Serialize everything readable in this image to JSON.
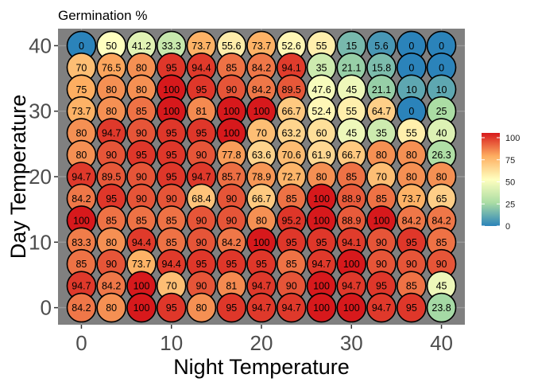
{
  "chart_data": {
    "type": "heatmap",
    "title": "Germination %",
    "xlabel": "Night Temperature",
    "ylabel": "Day Temperature",
    "x": [
      0,
      3.33,
      6.67,
      10,
      13.33,
      16.67,
      20,
      23.33,
      26.67,
      30,
      33.33,
      36.67,
      40
    ],
    "y": [
      0,
      3.33,
      6.67,
      10,
      13.33,
      16.67,
      20,
      23.33,
      26.67,
      30,
      33.33,
      36.67,
      40
    ],
    "xticks": [
      0,
      10,
      20,
      30,
      40
    ],
    "yticks": [
      0,
      10,
      20,
      30,
      40
    ],
    "xlim": [
      -2.6,
      42.6
    ],
    "ylim": [
      -2.6,
      42.6
    ],
    "rows_top_to_bottom": [
      [
        "0",
        "50",
        "41.2",
        "33.3",
        "73.7",
        "55.6",
        "73.7",
        "52.6",
        "55",
        "15",
        "5.6",
        "0",
        "0"
      ],
      [
        "70",
        "76.5",
        "80",
        "95",
        "94.4",
        "85",
        "84.2",
        "94.1",
        "35",
        "21.1",
        "15.8",
        "0",
        "0"
      ],
      [
        "75",
        "80",
        "80",
        "100",
        "95",
        "90",
        "84.2",
        "89.5",
        "47.6",
        "45",
        "21.1",
        "10",
        "10"
      ],
      [
        "73.7",
        "80",
        "85",
        "100",
        "81",
        "100",
        "100",
        "66.7",
        "52.4",
        "55",
        "64.7",
        "0",
        "25"
      ],
      [
        "80",
        "94.7",
        "90",
        "95",
        "95",
        "100",
        "70",
        "63.2",
        "60",
        "45",
        "35",
        "55",
        "40"
      ],
      [
        "80",
        "90",
        "95",
        "95",
        "90",
        "77.8",
        "63.6",
        "70.6",
        "61.9",
        "66.7",
        "80",
        "80",
        "26.3"
      ],
      [
        "94.7",
        "89.5",
        "90",
        "95",
        "94.7",
        "85.7",
        "78.9",
        "72.7",
        "80",
        "85",
        "70",
        "80",
        "80"
      ],
      [
        "84.2",
        "95",
        "90",
        "90",
        "68.4",
        "90",
        "66.7",
        "85",
        "100",
        "88.9",
        "85",
        "73.7",
        "65"
      ],
      [
        "100",
        "85",
        "85",
        "85",
        "90",
        "90",
        "80",
        "95.2",
        "100",
        "88.9",
        "100",
        "84.2",
        "84.2"
      ],
      [
        "83.3",
        "80",
        "94.4",
        "85",
        "90",
        "84.2",
        "100",
        "95",
        "95",
        "94.1",
        "90",
        "95",
        "85"
      ],
      [
        "85",
        "90",
        "73.7",
        "94.4",
        "95",
        "95",
        "95",
        "85",
        "94.7",
        "100",
        "90",
        "90",
        "90"
      ],
      [
        "94.7",
        "84.2",
        "100",
        "70",
        "90",
        "81",
        "94.7",
        "90",
        "100",
        "94.7",
        "95",
        "85",
        "45"
      ],
      [
        "84.2",
        "80",
        "100",
        "95",
        "80",
        "95",
        "94.7",
        "94.7",
        "100",
        "100",
        "94.7",
        "95",
        "23.8"
      ]
    ],
    "legend": {
      "position": "right",
      "ticks": [
        0,
        25,
        50,
        75,
        100
      ],
      "scale": "spectral",
      "low_color": "#2b83ba",
      "mid_color": "#ffffbf",
      "high_color": "#d7191c"
    },
    "panel_background": "#808080",
    "grid": true
  }
}
